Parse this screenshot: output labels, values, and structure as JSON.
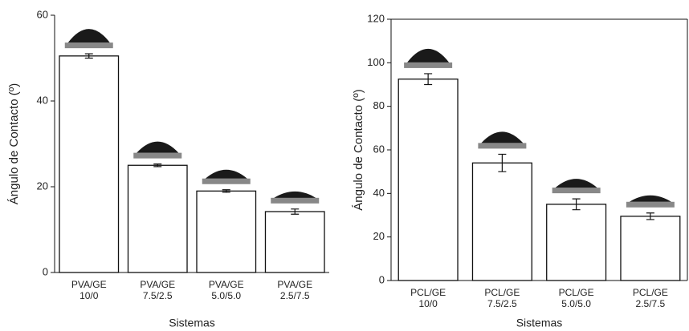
{
  "chart_data": [
    {
      "type": "bar",
      "ylabel": "Ángulo de Contacto (º)",
      "xlabel": "Sistemas",
      "categories": [
        "PVA/GE\n10/0",
        "PVA/GE\n7.5/2.5",
        "PVA/GE\n5.0/5.0",
        "PVA/GE\n2.5/7.5"
      ],
      "values": [
        50.5,
        25,
        19,
        14.2
      ],
      "errors": [
        0.5,
        0.3,
        0.3,
        0.6
      ],
      "color": "#ffffff",
      "ylim": [
        0,
        60
      ],
      "yticks": [
        0,
        20,
        40,
        60
      ]
    },
    {
      "type": "bar",
      "ylabel": "Ángulo de Contacto (º)",
      "xlabel": "Sistemas",
      "categories": [
        "PCL/GE\n10/0",
        "PCL/GE\n7.5/2.5",
        "PCL/GE\n5.0/5.0",
        "PCL/GE\n2.5/7.5"
      ],
      "values": [
        92.5,
        54,
        35,
        29.5
      ],
      "errors": [
        2.5,
        4,
        2.5,
        1.5
      ],
      "color": "#ffffff",
      "ylim": [
        0,
        120
      ],
      "yticks": [
        0,
        20,
        40,
        60,
        80,
        100,
        120
      ]
    }
  ]
}
